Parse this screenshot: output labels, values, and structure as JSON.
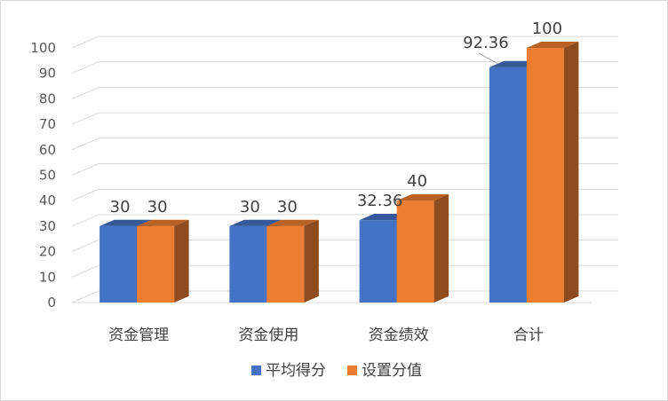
{
  "chart_data": {
    "type": "bar",
    "categories": [
      "资金管理",
      "资金使用",
      "资金绩效",
      "合计"
    ],
    "series": [
      {
        "name": "平均得分",
        "values": [
          30,
          30,
          32.36,
          92.36
        ],
        "color": "#4472C4",
        "labels": [
          "30",
          "30",
          "32.36",
          "92.36"
        ]
      },
      {
        "name": "设置分值",
        "values": [
          30,
          30,
          40,
          100
        ],
        "color": "#ED7D31",
        "labels": [
          "30",
          "30",
          "40",
          "100"
        ]
      }
    ],
    "ylim": [
      0,
      100
    ],
    "yticks": [
      "0",
      "10",
      "20",
      "30",
      "40",
      "50",
      "60",
      "70",
      "80",
      "90",
      "100"
    ],
    "grid": true,
    "legend_position": "bottom",
    "style": "3d-clustered-column"
  }
}
